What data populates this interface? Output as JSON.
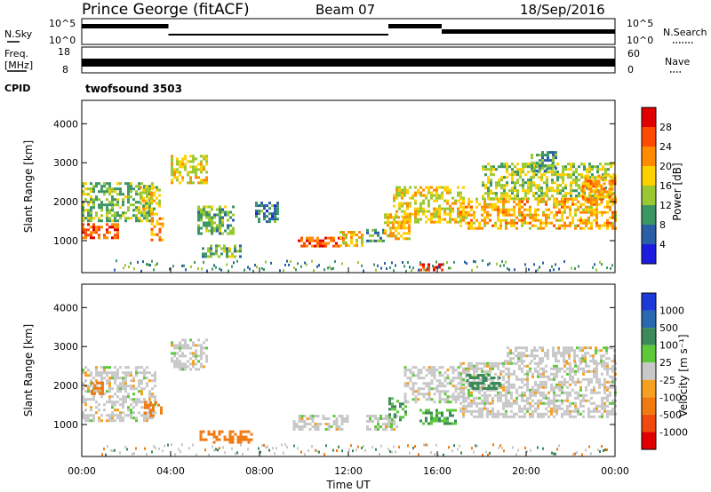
{
  "header": {
    "station": "Prince George (fitACF)",
    "beam": "Beam 07",
    "date": "18/Sep/2016"
  },
  "chart_data": [
    {
      "type": "line",
      "panel": "noise",
      "left_label": "N.Sky",
      "right_label": "N.Search",
      "left_ticks": [
        "10^5",
        "10^0"
      ],
      "right_ticks": [
        "10^5",
        "10^0"
      ],
      "segments": [
        {
          "x0": 0.0,
          "x1": 3.9,
          "level": "high"
        },
        {
          "x0": 3.9,
          "x1": 13.8,
          "level": "low"
        },
        {
          "x0": 13.8,
          "x1": 16.2,
          "level": "high"
        },
        {
          "x0": 16.2,
          "x1": 24.0,
          "level": "medium"
        }
      ]
    },
    {
      "type": "line",
      "panel": "frequency-nave",
      "left_label_lines": [
        "Freq.",
        "[MHz]"
      ],
      "left_ticks": [
        "18",
        "8"
      ],
      "right_label": "Nave",
      "right_ticks": [
        "60",
        "0"
      ],
      "cpid_label": "CPID",
      "cpid_value": "twofsound 3503"
    },
    {
      "type": "heatmap",
      "panel": "power",
      "ylabel": "Slant Range [km]",
      "y_ticks": [
        1000,
        2000,
        3000,
        4000
      ],
      "ylim": [
        180,
        4600
      ],
      "xlim": [
        0,
        24
      ],
      "colorbar_label": "Power [dB]",
      "colorbar_ticks": [
        "28",
        "24",
        "20",
        "16",
        "12",
        "8",
        "4"
      ],
      "colorbar_colors": [
        "#e00000",
        "#ff4a00",
        "#ff8c00",
        "#ffd000",
        "#9ac832",
        "#3c9664",
        "#2a5fa8",
        "#1c1ce0"
      ],
      "echo_regions": [
        {
          "t0": 0.0,
          "t1": 1.6,
          "r0": 1100,
          "r1": 1450,
          "p": 26
        },
        {
          "t0": 0.0,
          "t1": 3.2,
          "r0": 1500,
          "r1": 2500,
          "p": 13
        },
        {
          "t0": 2.6,
          "t1": 3.5,
          "r0": 1700,
          "r1": 2400,
          "p": 16
        },
        {
          "t0": 3.1,
          "t1": 3.7,
          "r0": 1000,
          "r1": 1600,
          "p": 22
        },
        {
          "t0": 4.0,
          "t1": 5.6,
          "r0": 2500,
          "r1": 3200,
          "p": 17
        },
        {
          "t0": 5.2,
          "t1": 6.8,
          "r0": 1200,
          "r1": 1900,
          "p": 12
        },
        {
          "t0": 5.4,
          "t1": 7.2,
          "r0": 600,
          "r1": 900,
          "p": 12
        },
        {
          "t0": 7.8,
          "t1": 8.8,
          "r0": 1500,
          "r1": 2000,
          "p": 8
        },
        {
          "t0": 9.6,
          "t1": 11.8,
          "r0": 850,
          "r1": 1100,
          "p": 26
        },
        {
          "t0": 11.6,
          "t1": 12.6,
          "r0": 900,
          "r1": 1250,
          "p": 18
        },
        {
          "t0": 12.8,
          "t1": 13.8,
          "r0": 1000,
          "r1": 1300,
          "p": 10
        },
        {
          "t0": 13.6,
          "t1": 14.7,
          "r0": 1050,
          "r1": 1700,
          "p": 19
        },
        {
          "t0": 14.0,
          "t1": 17.2,
          "r0": 1500,
          "r1": 2400,
          "p": 17
        },
        {
          "t0": 15.2,
          "t1": 16.2,
          "r0": 280,
          "r1": 420,
          "p": 30
        },
        {
          "t0": 17.0,
          "t1": 24.0,
          "r0": 1300,
          "r1": 2100,
          "p": 20
        },
        {
          "t0": 18.0,
          "t1": 24.0,
          "r0": 2100,
          "r1": 3000,
          "p": 15
        },
        {
          "t0": 20.2,
          "t1": 21.3,
          "r0": 2800,
          "r1": 3300,
          "p": 11
        },
        {
          "t0": 22.5,
          "t1": 24.0,
          "r0": 2000,
          "r1": 2700,
          "p": 21
        }
      ]
    },
    {
      "type": "heatmap",
      "panel": "velocity",
      "ylabel": "Slant Range [km]",
      "y_ticks": [
        1000,
        2000,
        3000,
        4000
      ],
      "ylim": [
        180,
        4600
      ],
      "xlim": [
        0,
        24
      ],
      "xlabel": "Time UT",
      "x_ticks": [
        "00:00",
        "04:00",
        "08:00",
        "12:00",
        "16:00",
        "20:00",
        "00:00"
      ],
      "colorbar_label": "Velocity [m s⁻¹]",
      "colorbar_ticks": [
        "1000",
        "500",
        "100",
        "25",
        "-25",
        "-100",
        "-500",
        "-1000"
      ],
      "colorbar_colors": [
        "#1c3ad8",
        "#2a68b0",
        "#3c8a5a",
        "#5cc83a",
        "#c8c8c8",
        "#f5a020",
        "#f07a10",
        "#f04a10",
        "#e00000"
      ],
      "echo_regions": [
        {
          "t0": 0.0,
          "t1": 3.3,
          "r0": 1100,
          "r1": 2500,
          "v": 0
        },
        {
          "t0": 0.4,
          "t1": 1.0,
          "r0": 1800,
          "r1": 2100,
          "v": -150
        },
        {
          "t0": 2.8,
          "t1": 3.6,
          "r0": 1200,
          "r1": 1600,
          "v": -250
        },
        {
          "t0": 4.0,
          "t1": 5.6,
          "r0": 2400,
          "r1": 3200,
          "v": 0
        },
        {
          "t0": 5.3,
          "t1": 7.6,
          "r0": 550,
          "r1": 850,
          "v": -200
        },
        {
          "t0": 9.5,
          "t1": 12.0,
          "r0": 850,
          "r1": 1250,
          "v": 0
        },
        {
          "t0": 12.8,
          "t1": 14.2,
          "r0": 900,
          "r1": 1250,
          "v": 0
        },
        {
          "t0": 13.8,
          "t1": 14.6,
          "r0": 1100,
          "r1": 1700,
          "v": 60
        },
        {
          "t0": 14.5,
          "t1": 17.2,
          "r0": 1600,
          "r1": 2500,
          "v": 0
        },
        {
          "t0": 15.2,
          "t1": 16.8,
          "r0": 1000,
          "r1": 1400,
          "v": 60
        },
        {
          "t0": 17.0,
          "t1": 24.0,
          "r0": 1200,
          "r1": 2600,
          "v": 0
        },
        {
          "t0": 17.3,
          "t1": 18.8,
          "r0": 1900,
          "r1": 2300,
          "v": 150
        },
        {
          "t0": 19.0,
          "t1": 24.0,
          "r0": 2600,
          "r1": 3000,
          "v": 0
        }
      ]
    }
  ]
}
